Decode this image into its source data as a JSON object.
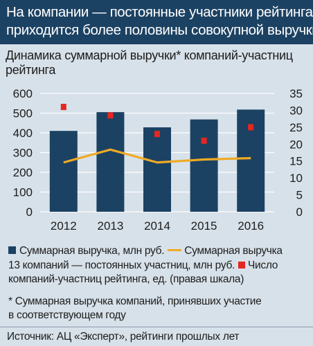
{
  "header": {
    "line1": "На компании — постоянные участники рейтинга",
    "line2": "приходится более половины совокупной выручки"
  },
  "subtitle": {
    "line1": "Динамика суммарной выручки* компаний-участниц",
    "line2": "рейтинга"
  },
  "colors": {
    "bar": "#1c4263",
    "line": "#f0aa25",
    "marker": "#e52621",
    "header_bg": "#1c4263",
    "panel_bg": "#d7e1ea",
    "grid": "#ffffff"
  },
  "chart_data": {
    "type": "bar",
    "categories": [
      "2012",
      "2013",
      "2014",
      "2015",
      "2016"
    ],
    "series": [
      {
        "name": "Суммарная выручка, млн руб.",
        "type": "bar",
        "axis": "left",
        "values": [
          410,
          505,
          428,
          468,
          518
        ]
      },
      {
        "name": "Суммарная выручка 13 компаний — постоянных участниц, млн руб.",
        "type": "line",
        "axis": "left",
        "values": [
          250,
          315,
          250,
          265,
          272
        ]
      },
      {
        "name": "Число компаний-участниц рейтинга, ед. (правая шкала)",
        "type": "scatter",
        "axis": "right",
        "values": [
          31,
          28.5,
          23,
          21,
          25
        ]
      }
    ],
    "ylim": [
      0,
      600
    ],
    "yticks": [
      "0",
      "100",
      "200",
      "300",
      "400",
      "500",
      "600"
    ],
    "y2lim": [
      0,
      35
    ],
    "y2ticks": [
      "0",
      "5",
      "10",
      "15",
      "20",
      "25",
      "30",
      "35"
    ],
    "grid": true,
    "legend_position": "bottom"
  },
  "legend": {
    "bar_label": "Суммарная выручка, млн руб.",
    "line_label_part1": "Суммарная выручка",
    "line_label_part2": "13 компаний — постоянных участниц, млн руб.",
    "marker_label_part1": "Число",
    "marker_label_part2": "компаний-участниц рейтинга, ед. (правая шкала)"
  },
  "footnote": {
    "line1": "* Суммарная выручка компаний, принявших участие",
    "line2": "в соответствующем году"
  },
  "source": "Источник: АЦ «Эксперт», рейтинги прошлых лет"
}
